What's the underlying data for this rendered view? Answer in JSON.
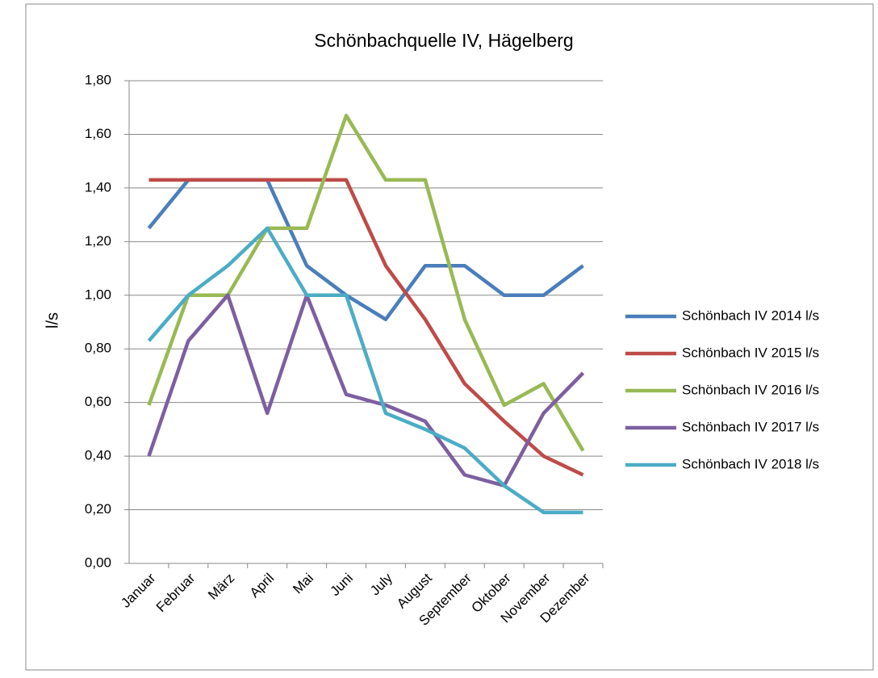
{
  "chart_data": {
    "type": "line",
    "title": "Schönbachquelle IV, Hägelberg",
    "y_label": "l/s",
    "categories": [
      "Januar",
      "Februar",
      "März",
      "April",
      "Mai",
      "Juni",
      "July",
      "August",
      "September",
      "Oktober",
      "November",
      "Dezember"
    ],
    "series": [
      {
        "name": "Schönbach IV 2014 l/s",
        "color": "#4a7ebb",
        "values": [
          1.25,
          1.43,
          1.43,
          1.43,
          1.11,
          1.0,
          0.91,
          1.11,
          1.11,
          1.0,
          1.0,
          1.11
        ]
      },
      {
        "name": "Schönbach IV 2015 l/s",
        "color": "#be4b48",
        "values": [
          1.43,
          1.43,
          1.43,
          1.43,
          1.43,
          1.43,
          1.11,
          0.91,
          0.67,
          0.53,
          0.4,
          0.33
        ]
      },
      {
        "name": "Schönbach IV 2016 l/s",
        "color": "#98b954",
        "values": [
          0.59,
          1.0,
          1.0,
          1.25,
          1.25,
          1.67,
          1.43,
          1.43,
          0.91,
          0.59,
          0.67,
          0.42
        ]
      },
      {
        "name": "Schönbach IV 2017 l/s",
        "color": "#7d5fa0",
        "values": [
          0.4,
          0.83,
          1.0,
          0.56,
          1.0,
          0.63,
          0.59,
          0.53,
          0.33,
          0.29,
          0.56,
          0.71
        ]
      },
      {
        "name": "Schönbach IV 2018 l/s",
        "color": "#4bacc6",
        "values": [
          0.83,
          1.0,
          1.11,
          1.25,
          1.0,
          1.0,
          0.56,
          0.5,
          0.43,
          0.29,
          0.19,
          0.19
        ]
      }
    ],
    "ylim": [
      0,
      1.8
    ],
    "yticks": [
      {
        "value": 0,
        "label": "0,00"
      },
      {
        "value": 0.2,
        "label": "0,20"
      },
      {
        "value": 0.4,
        "label": "0,40"
      },
      {
        "value": 0.6,
        "label": "0,60"
      },
      {
        "value": 0.8,
        "label": "0,80"
      },
      {
        "value": 1.0,
        "label": "1,00"
      },
      {
        "value": 1.2,
        "label": "1,20"
      },
      {
        "value": 1.4,
        "label": "1,40"
      },
      {
        "value": 1.6,
        "label": "1,60"
      },
      {
        "value": 1.8,
        "label": "1,80"
      }
    ],
    "grid": true,
    "legend": "right"
  }
}
